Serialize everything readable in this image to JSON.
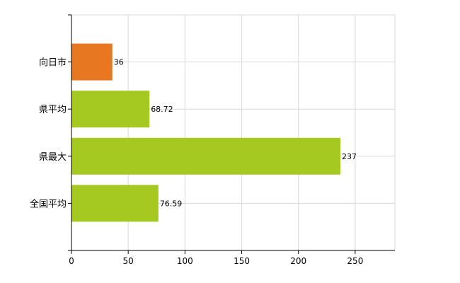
{
  "chart_data": {
    "type": "bar",
    "orientation": "horizontal",
    "categories": [
      "向日市",
      "県平均",
      "県最大",
      "全国平均"
    ],
    "values": [
      36,
      68.72,
      237,
      76.59
    ],
    "value_labels": [
      "36",
      "68.72",
      "237",
      "76.59"
    ],
    "bar_colors": [
      "#E87722",
      "#A5C920",
      "#A5C920",
      "#A5C920"
    ],
    "xlim": [
      0,
      285
    ],
    "xticks": [
      0,
      50,
      100,
      150,
      200,
      250
    ],
    "xtick_labels": [
      "0",
      "50",
      "100",
      "150",
      "200",
      "250"
    ],
    "grid": true,
    "legend": "none"
  }
}
